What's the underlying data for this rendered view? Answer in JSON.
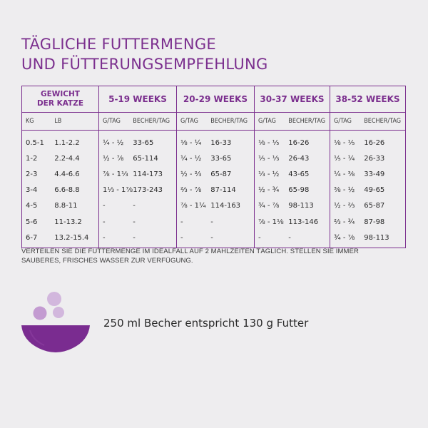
{
  "title": {
    "line1": "TÄGLICHE FUTTERMENGE",
    "line2": "UND FÜTTERUNGSEMPFEHLUNG"
  },
  "table": {
    "weight_header_line1": "GEWICHT",
    "weight_header_line2": "DER KATZE",
    "groups": [
      "5-19 WEEKS",
      "20-29 WEEKS",
      "30-37 WEEKS",
      "38-52 WEEKS"
    ],
    "sub_kg": "KG",
    "sub_lb": "LB",
    "sub_g": "G/TAG",
    "sub_cup": "BECHER/TAG",
    "rows": [
      [
        "0.5-1",
        "1.1-2.2",
        "¼ - ½",
        "33-65",
        "⅛ - ¼",
        "16-33",
        "⅛ - ⅕",
        "16-26",
        "⅛ - ⅕",
        "16-26"
      ],
      [
        "1-2",
        "2.2-4.4",
        "½ - ⅞",
        "65-114",
        "¼ - ½",
        "33-65",
        "⅕ - ⅓",
        "26-43",
        "⅕ - ¼",
        "26-33"
      ],
      [
        "2-3",
        "4.4-6.6",
        "⅞ - 1⅓",
        "114-173",
        "½ - ⅔",
        "65-87",
        "⅓ - ½",
        "43-65",
        "¼ - ⅜",
        "33-49"
      ],
      [
        "3-4",
        "6.6-8.8",
        "1⅓ - 1⅞",
        "173-243",
        "⅔ - ⅞",
        "87-114",
        "½ - ¾",
        "65-98",
        "⅜ - ½",
        "49-65"
      ],
      [
        "4-5",
        "8.8-11",
        "-",
        "-",
        "⅞ - 1¼",
        "114-163",
        "¾ - ⅞",
        "98-113",
        "½ - ⅔",
        "65-87"
      ],
      [
        "5-6",
        "11-13.2",
        "-",
        "-",
        "-",
        "-",
        "⅞ - 1⅛",
        "113-146",
        "⅔ - ¾",
        "87-98"
      ],
      [
        "6-7",
        "13.2-15.4",
        "-",
        "-",
        "-",
        "-",
        "-",
        "-",
        "¾ - ⅞",
        "98-113"
      ]
    ]
  },
  "note": {
    "line1": "VERTEILEN SIE DIE FUTTERMENGE IM IDEALFALL AUF 2 MAHLZEITEN TÄGLICH. STELLEN SIE IMMER",
    "line2": "SAUBERES, FRISCHES WASSER ZUR VERFÜGUNG."
  },
  "cup_info": "250 ml Becher entspricht 130 g Futter",
  "icon": "food-bowl-icon",
  "colors": {
    "accent": "#7b2f8e",
    "bowl": "#7a2c90",
    "kibble_light": "#d2b7dd",
    "kibble_mid": "#c39bd1",
    "background": "#eeedef"
  }
}
